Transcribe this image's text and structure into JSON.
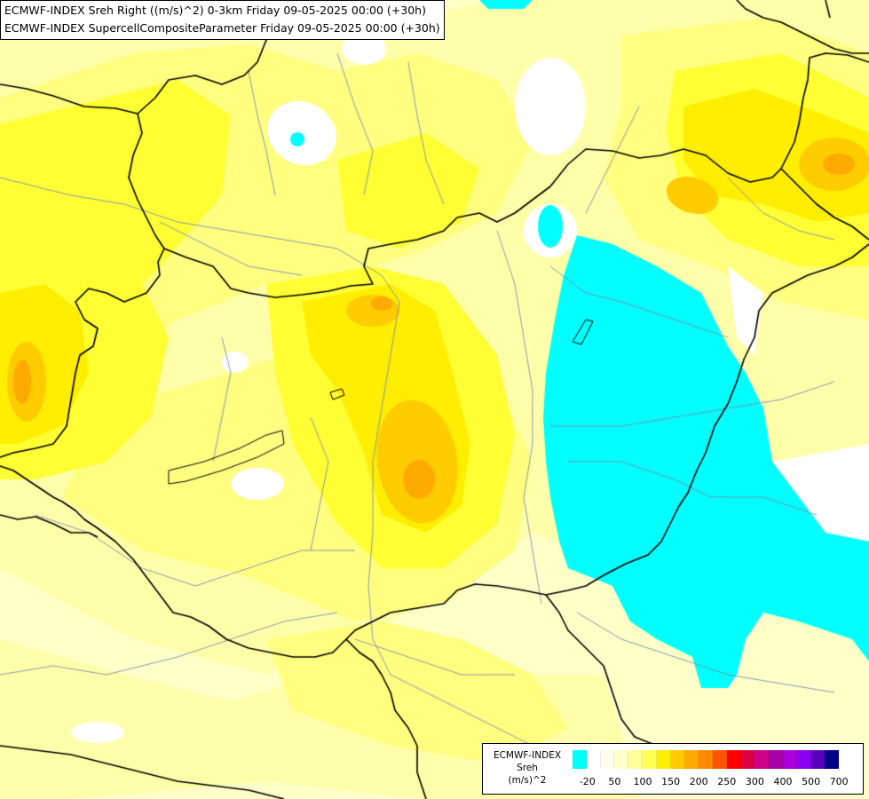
{
  "header": {
    "line1": "ECMWF-INDEX Sreh Right ((m/s)^2) 0-3km Friday 09-05-2025 00:00 (+30h)",
    "line2": "ECMWF-INDEX SupercellCompositeParameter Friday 09-05-2025 00:00 (+30h)"
  },
  "legend": {
    "line1": "ECMWF-INDEX",
    "line2": "Sreh",
    "line3": "(m/s)^2",
    "colors": [
      "#00ffff",
      "#ffffff",
      "#ffffee",
      "#ffffcc",
      "#ffff99",
      "#ffff55",
      "#ffee00",
      "#ffcc00",
      "#ffaa00",
      "#ff8800",
      "#ff5500",
      "#ff0000",
      "#dd0044",
      "#cc0088",
      "#aa00aa",
      "#aa00dd",
      "#8800ee",
      "#5500bb",
      "#000088"
    ],
    "ticks": [
      {
        "label": "-20",
        "slot": 1
      },
      {
        "label": "50",
        "slot": 3
      },
      {
        "label": "100",
        "slot": 5
      },
      {
        "label": "150",
        "slot": 7
      },
      {
        "label": "200",
        "slot": 9
      },
      {
        "label": "250",
        "slot": 11
      },
      {
        "label": "300",
        "slot": 13
      },
      {
        "label": "400",
        "slot": 15
      },
      {
        "label": "500",
        "slot": 17
      },
      {
        "label": "700",
        "slot": 19
      }
    ]
  },
  "map": {
    "colors": {
      "background": "#ffffc8",
      "pale": "#ffffaa",
      "light": "#ffff80",
      "yellow": "#ffff33",
      "gold": "#ffee00",
      "deep": "#ffcc00",
      "orange": "#ffaa00",
      "white": "#ffffff",
      "cyan": "#00ffff",
      "border": "#000000",
      "river": "#7d8fb0"
    }
  }
}
